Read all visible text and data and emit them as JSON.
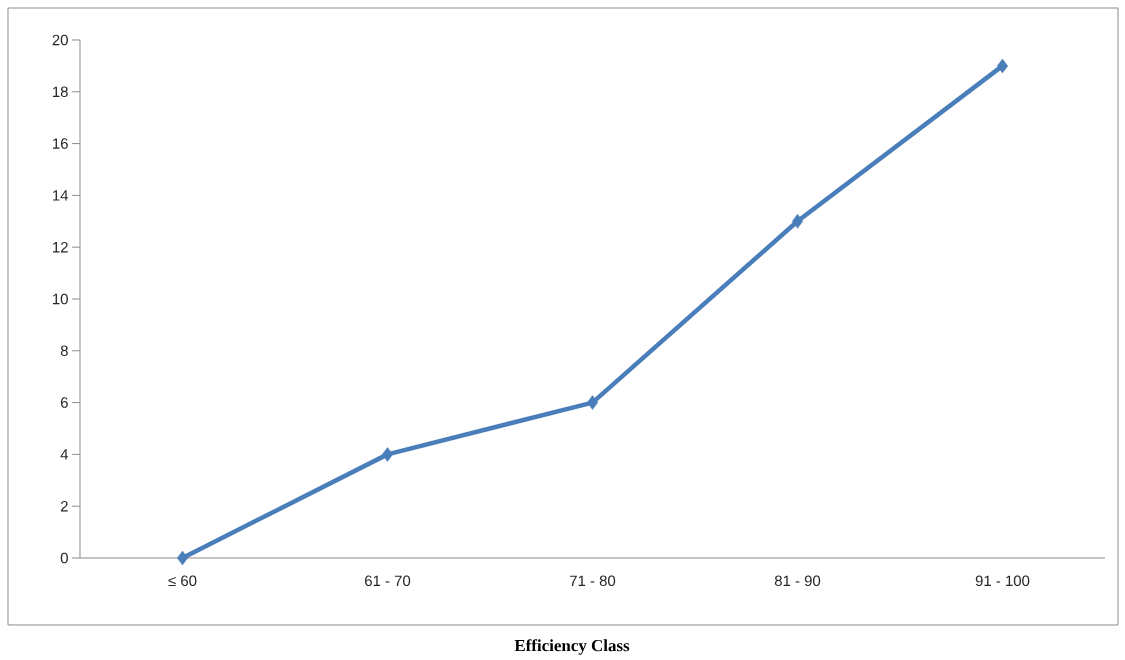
{
  "chart_data": {
    "type": "line",
    "xlabel": "Efficiency Class",
    "categories": [
      "≤ 60",
      "61 - 70",
      "71 - 80",
      "81 - 90",
      "91 - 100"
    ],
    "values": [
      0,
      4,
      6,
      13,
      19
    ],
    "color": "#4a7ebb",
    "marker": "diamond",
    "ylim": [
      0,
      20
    ],
    "yticks": [
      0,
      2,
      4,
      6,
      8,
      10,
      12,
      14,
      16,
      18,
      20
    ],
    "grid": false
  }
}
